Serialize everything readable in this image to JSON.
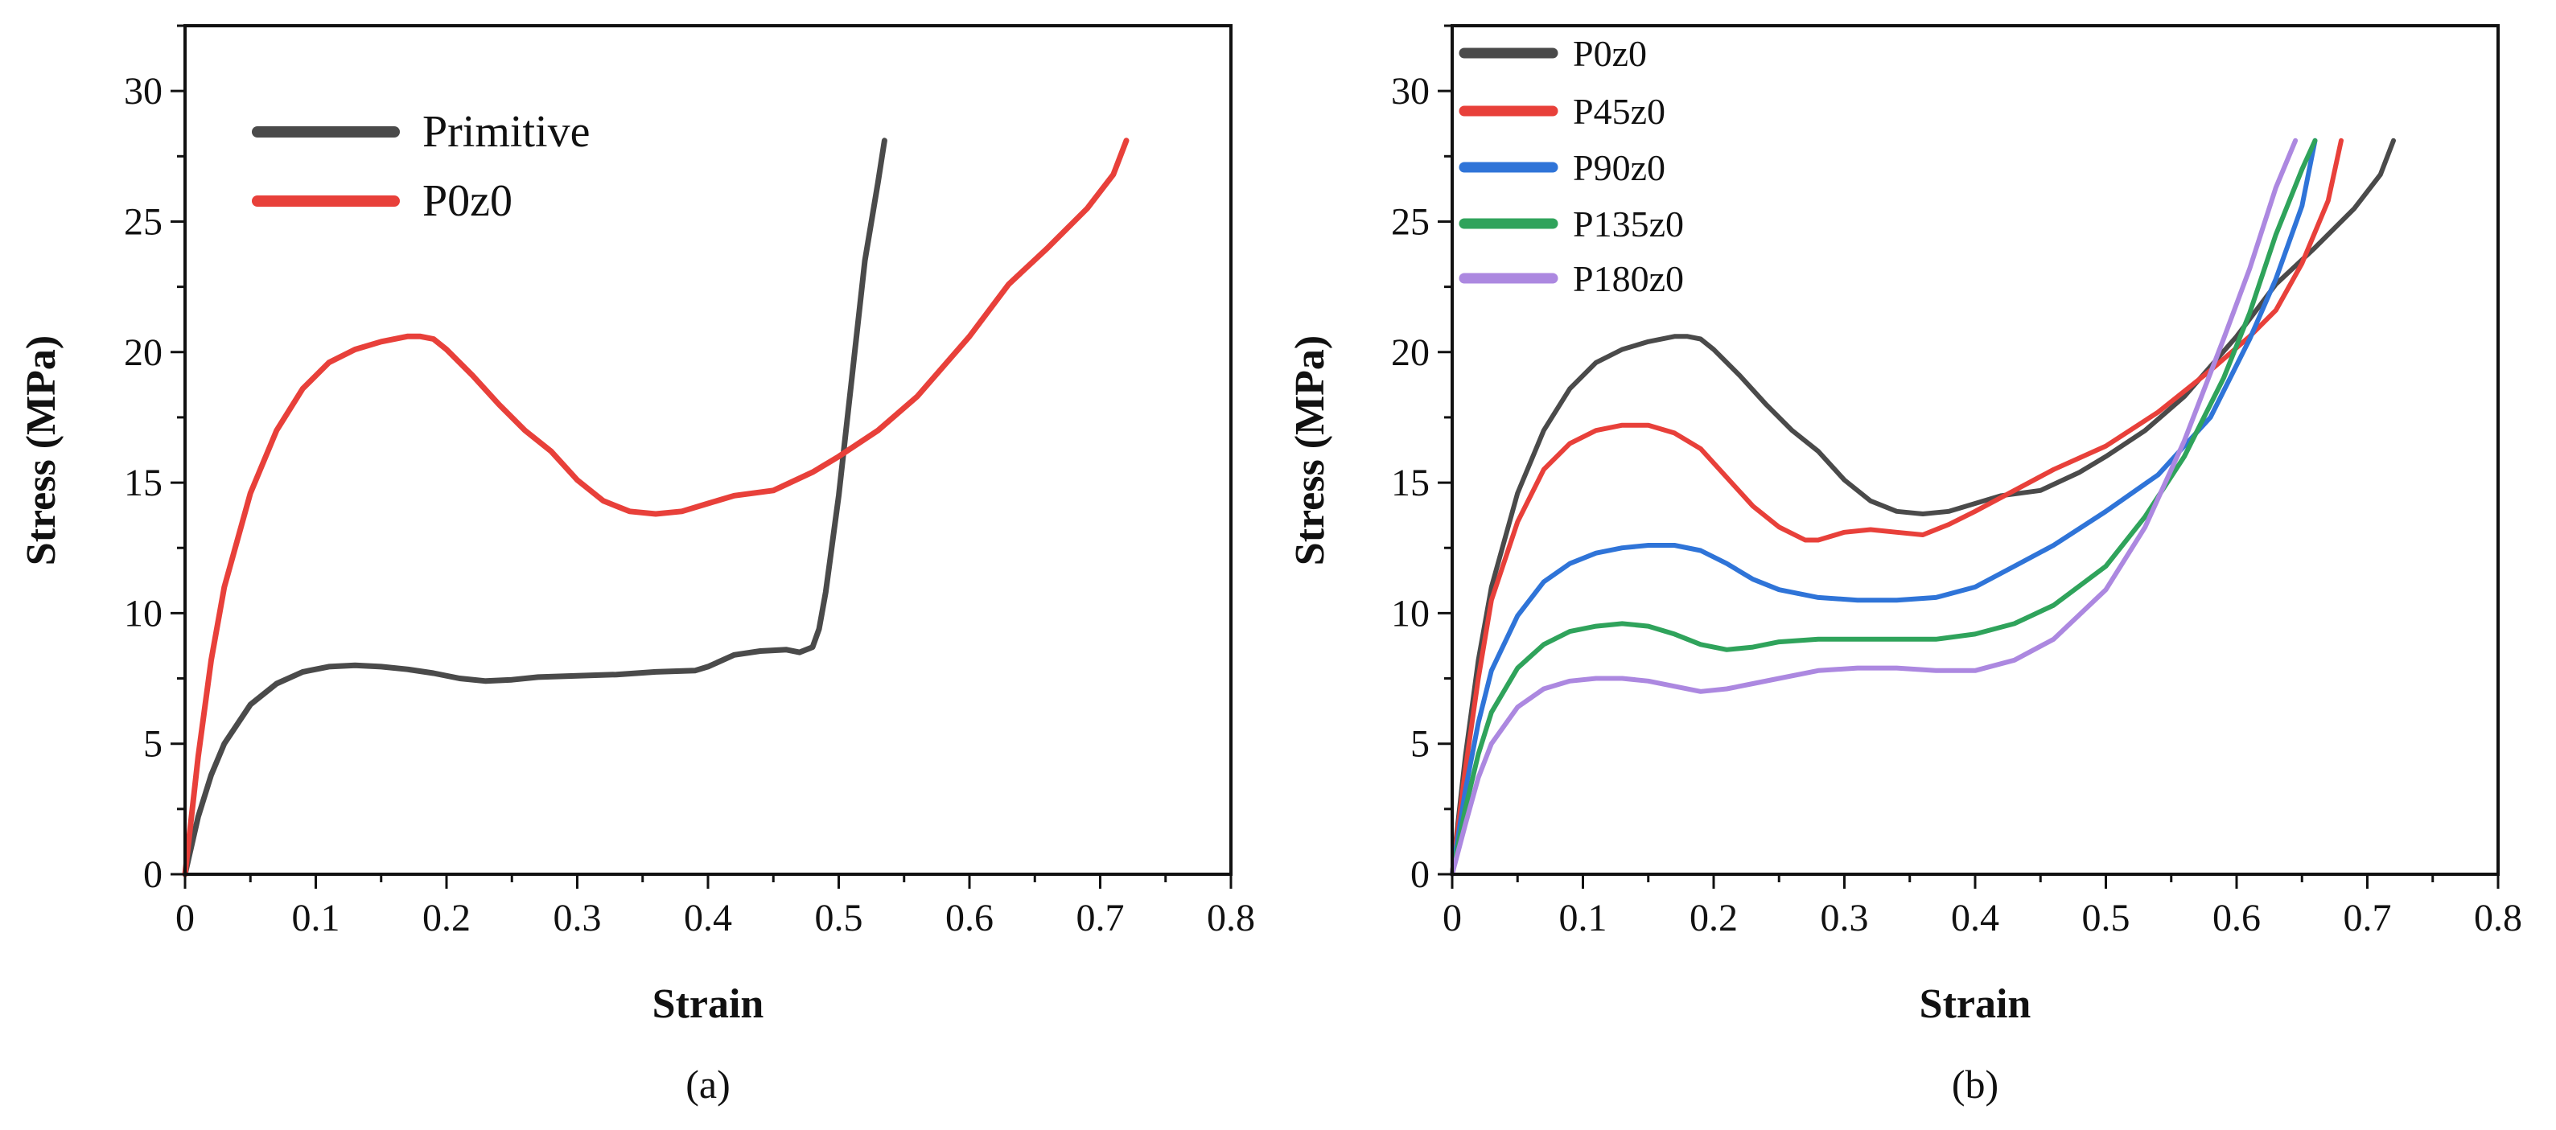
{
  "chart_data": [
    {
      "type": "line",
      "caption": "(a)",
      "xlabel": "Strain",
      "ylabel": "Stress (MPa)",
      "xlim": [
        0,
        0.8
      ],
      "ylim": [
        0,
        32.5
      ],
      "xticks": [
        "0",
        "0.1",
        "0.2",
        "0.3",
        "0.4",
        "0.5",
        "0.6",
        "0.7",
        "0.8"
      ],
      "yticks": [
        "0",
        "5",
        "10",
        "15",
        "20",
        "25",
        "30"
      ],
      "legend_position": "top-left",
      "series": [
        {
          "name": "Primitive",
          "color": "#4a4a4a",
          "x": [
            0,
            0.01,
            0.02,
            0.03,
            0.05,
            0.07,
            0.09,
            0.11,
            0.13,
            0.15,
            0.17,
            0.19,
            0.21,
            0.23,
            0.25,
            0.27,
            0.3,
            0.33,
            0.36,
            0.39,
            0.4,
            0.42,
            0.44,
            0.46,
            0.47,
            0.48,
            0.485,
            0.49,
            0.5,
            0.51,
            0.52,
            0.53,
            0.535
          ],
          "y": [
            0,
            2.2,
            3.8,
            5.0,
            6.5,
            7.3,
            7.75,
            7.95,
            8.0,
            7.95,
            7.85,
            7.7,
            7.5,
            7.4,
            7.45,
            7.55,
            7.6,
            7.65,
            7.75,
            7.8,
            7.95,
            8.4,
            8.55,
            8.6,
            8.5,
            8.7,
            9.4,
            10.8,
            14.5,
            19.0,
            23.5,
            26.5,
            28.1
          ]
        },
        {
          "name": "P0z0",
          "color": "#e8403a",
          "x": [
            0,
            0.01,
            0.02,
            0.03,
            0.05,
            0.07,
            0.09,
            0.11,
            0.13,
            0.15,
            0.17,
            0.18,
            0.19,
            0.2,
            0.22,
            0.24,
            0.26,
            0.28,
            0.3,
            0.32,
            0.34,
            0.36,
            0.38,
            0.4,
            0.42,
            0.45,
            0.48,
            0.5,
            0.53,
            0.56,
            0.6,
            0.63,
            0.66,
            0.69,
            0.71,
            0.72
          ],
          "y": [
            0,
            4.5,
            8.2,
            11.0,
            14.6,
            17.0,
            18.6,
            19.6,
            20.1,
            20.4,
            20.6,
            20.6,
            20.5,
            20.1,
            19.1,
            18.0,
            17.0,
            16.2,
            15.1,
            14.3,
            13.9,
            13.8,
            13.9,
            14.2,
            14.5,
            14.7,
            15.4,
            16.0,
            17.0,
            18.3,
            20.6,
            22.6,
            24.0,
            25.5,
            26.8,
            28.1
          ]
        }
      ]
    },
    {
      "type": "line",
      "caption": "(b)",
      "xlabel": "Strain",
      "ylabel": "Stress (MPa)",
      "xlim": [
        0,
        0.8
      ],
      "ylim": [
        0,
        32.5
      ],
      "xticks": [
        "0",
        "0.1",
        "0.2",
        "0.3",
        "0.4",
        "0.5",
        "0.6",
        "0.7",
        "0.8"
      ],
      "yticks": [
        "0",
        "5",
        "10",
        "15",
        "20",
        "25",
        "30"
      ],
      "legend_position": "top-left",
      "series": [
        {
          "name": "P0z0",
          "color": "#4a4a4a",
          "x": [
            0,
            0.01,
            0.02,
            0.03,
            0.05,
            0.07,
            0.09,
            0.11,
            0.13,
            0.15,
            0.17,
            0.18,
            0.19,
            0.2,
            0.22,
            0.24,
            0.26,
            0.28,
            0.3,
            0.32,
            0.34,
            0.36,
            0.38,
            0.4,
            0.42,
            0.45,
            0.48,
            0.5,
            0.53,
            0.56,
            0.6,
            0.63,
            0.66,
            0.69,
            0.71,
            0.72
          ],
          "y": [
            0,
            4.5,
            8.2,
            11.0,
            14.6,
            17.0,
            18.6,
            19.6,
            20.1,
            20.4,
            20.6,
            20.6,
            20.5,
            20.1,
            19.1,
            18.0,
            17.0,
            16.2,
            15.1,
            14.3,
            13.9,
            13.8,
            13.9,
            14.2,
            14.5,
            14.7,
            15.4,
            16.0,
            17.0,
            18.3,
            20.6,
            22.6,
            24.0,
            25.5,
            26.8,
            28.1
          ]
        },
        {
          "name": "P45z0",
          "color": "#e8403a",
          "x": [
            0,
            0.01,
            0.02,
            0.03,
            0.05,
            0.07,
            0.09,
            0.11,
            0.13,
            0.15,
            0.17,
            0.19,
            0.21,
            0.23,
            0.25,
            0.27,
            0.28,
            0.3,
            0.32,
            0.34,
            0.36,
            0.38,
            0.4,
            0.43,
            0.46,
            0.5,
            0.54,
            0.58,
            0.61,
            0.63,
            0.65,
            0.67,
            0.68
          ],
          "y": [
            0,
            4.0,
            7.5,
            10.5,
            13.5,
            15.5,
            16.5,
            17.0,
            17.2,
            17.2,
            16.9,
            16.3,
            15.2,
            14.1,
            13.3,
            12.8,
            12.8,
            13.1,
            13.2,
            13.1,
            13.0,
            13.4,
            13.9,
            14.7,
            15.5,
            16.4,
            17.7,
            19.3,
            20.6,
            21.6,
            23.4,
            25.8,
            28.1
          ]
        },
        {
          "name": "P90z0",
          "color": "#2f74d8",
          "x": [
            0,
            0.01,
            0.02,
            0.03,
            0.05,
            0.07,
            0.09,
            0.11,
            0.13,
            0.15,
            0.17,
            0.19,
            0.21,
            0.23,
            0.25,
            0.28,
            0.31,
            0.34,
            0.37,
            0.4,
            0.43,
            0.46,
            0.5,
            0.54,
            0.58,
            0.61,
            0.63,
            0.65,
            0.66
          ],
          "y": [
            0,
            3.2,
            5.8,
            7.8,
            9.9,
            11.2,
            11.9,
            12.3,
            12.5,
            12.6,
            12.6,
            12.4,
            11.9,
            11.3,
            10.9,
            10.6,
            10.5,
            10.5,
            10.6,
            11.0,
            11.8,
            12.6,
            13.9,
            15.3,
            17.5,
            20.5,
            22.8,
            25.6,
            28.1
          ]
        },
        {
          "name": "P135z0",
          "color": "#2fa35b",
          "x": [
            0,
            0.01,
            0.02,
            0.03,
            0.05,
            0.07,
            0.09,
            0.11,
            0.13,
            0.15,
            0.17,
            0.19,
            0.21,
            0.23,
            0.25,
            0.28,
            0.31,
            0.34,
            0.37,
            0.4,
            0.43,
            0.46,
            0.5,
            0.53,
            0.56,
            0.59,
            0.61,
            0.63,
            0.65,
            0.66
          ],
          "y": [
            0,
            2.5,
            4.6,
            6.2,
            7.9,
            8.8,
            9.3,
            9.5,
            9.6,
            9.5,
            9.2,
            8.8,
            8.6,
            8.7,
            8.9,
            9.0,
            9.0,
            9.0,
            9.0,
            9.2,
            9.6,
            10.3,
            11.8,
            13.7,
            16.0,
            19.0,
            21.5,
            24.5,
            27.0,
            28.1
          ]
        },
        {
          "name": "P180z0",
          "color": "#ac88e0",
          "x": [
            0,
            0.01,
            0.02,
            0.03,
            0.05,
            0.07,
            0.09,
            0.11,
            0.13,
            0.15,
            0.17,
            0.19,
            0.21,
            0.23,
            0.25,
            0.28,
            0.31,
            0.34,
            0.37,
            0.4,
            0.43,
            0.46,
            0.5,
            0.53,
            0.56,
            0.59,
            0.61,
            0.63,
            0.645
          ],
          "y": [
            0,
            1.9,
            3.7,
            5.0,
            6.4,
            7.1,
            7.4,
            7.5,
            7.5,
            7.4,
            7.2,
            7.0,
            7.1,
            7.3,
            7.5,
            7.8,
            7.9,
            7.9,
            7.8,
            7.8,
            8.2,
            9.0,
            10.9,
            13.3,
            16.6,
            20.5,
            23.2,
            26.3,
            28.1
          ]
        }
      ]
    }
  ]
}
